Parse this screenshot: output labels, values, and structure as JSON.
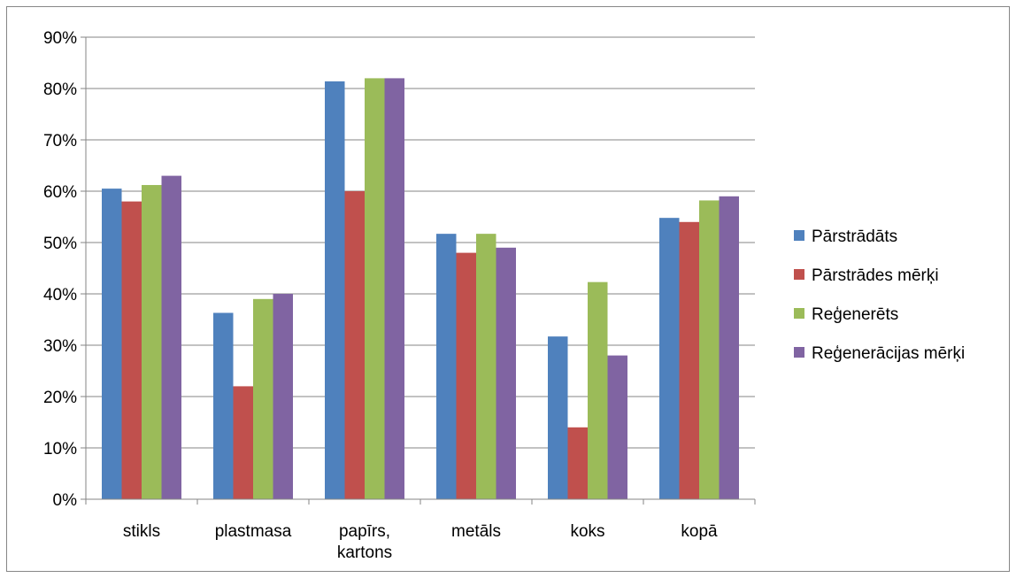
{
  "chart_data": {
    "type": "bar",
    "title": "",
    "xlabel": "",
    "ylabel": "",
    "ylim": [
      0,
      90
    ],
    "yticks": [
      "0%",
      "10%",
      "20%",
      "30%",
      "40%",
      "50%",
      "60%",
      "70%",
      "80%",
      "90%"
    ],
    "ytick_values": [
      0,
      10,
      20,
      30,
      40,
      50,
      60,
      70,
      80,
      90
    ],
    "grid": true,
    "legend_position": "right",
    "categories": [
      [
        "stikls"
      ],
      [
        "plastmasa"
      ],
      [
        "papīrs,",
        "kartons"
      ],
      [
        "metāls"
      ],
      [
        "koks"
      ],
      [
        "kopā"
      ]
    ],
    "series": [
      {
        "name": "Pārstrādāts",
        "color": "#4f81bd",
        "values": [
          60.5,
          36.3,
          81.4,
          51.7,
          31.7,
          54.8
        ]
      },
      {
        "name": "Pārstrādes mērķi",
        "color": "#c0504d",
        "values": [
          58,
          22,
          60,
          48,
          14,
          54
        ]
      },
      {
        "name": "Reģenerēts",
        "color": "#9bbb59",
        "values": [
          61.2,
          39,
          82,
          51.7,
          42.3,
          58.2
        ]
      },
      {
        "name": "Reģenerācijas mērķi",
        "color": "#8064a2",
        "values": [
          63,
          40,
          82,
          49,
          28,
          59
        ]
      }
    ]
  }
}
